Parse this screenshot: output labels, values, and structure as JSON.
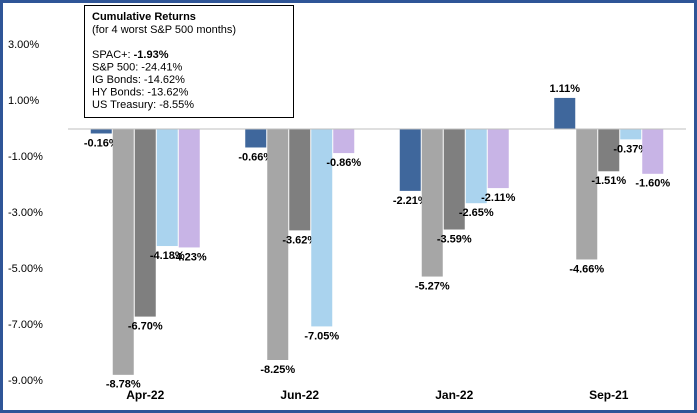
{
  "chart_data": {
    "type": "bar",
    "categories": [
      "Apr-22",
      "Jun-22",
      "Jan-22",
      "Sep-21"
    ],
    "series": [
      {
        "color": "#3f679c",
        "values": [
          -0.16,
          -0.66,
          -2.21,
          1.11
        ],
        "value_labels": [
          "-0.16%",
          "-0.66%",
          "-2.21%",
          "1.11%"
        ]
      },
      {
        "color": "#a6a6a6",
        "values": [
          -8.78,
          -8.25,
          -5.27,
          -4.66
        ],
        "value_labels": [
          "-8.78%",
          "-8.25%",
          "-5.27%",
          "-4.66%"
        ]
      },
      {
        "color": "#7f7f7f",
        "values": [
          -6.7,
          -3.62,
          -3.59,
          -1.51
        ],
        "value_labels": [
          "-6.70%",
          "-3.62%",
          "-3.59%",
          "-1.51%"
        ]
      },
      {
        "color": "#aad3ee",
        "values": [
          -4.18,
          -7.05,
          -2.65,
          -0.37
        ],
        "value_labels": [
          "-4.18%",
          "-7.05%",
          "-2.65%",
          "-0.37%"
        ]
      },
      {
        "color": "#c8b4e6",
        "values": [
          -4.23,
          -0.86,
          -2.11,
          -1.6
        ],
        "value_labels": [
          "-4.23%",
          "-0.86%",
          "-2.11%",
          "-1.60%"
        ]
      }
    ],
    "ylim": [
      -9,
      3
    ],
    "yticks": [
      {
        "value": 3,
        "label": "3.00%"
      },
      {
        "value": 1,
        "label": "1.00%"
      },
      {
        "value": -1,
        "label": "-1.00%"
      },
      {
        "value": -3,
        "label": "-3.00%"
      },
      {
        "value": -5,
        "label": "-5.00%"
      },
      {
        "value": -7,
        "label": "-7.00%"
      },
      {
        "value": -9,
        "label": "-9.00%"
      }
    ],
    "annotation": {
      "title": "Cumulative Returns",
      "subtitle": "(for 4 worst S&P 500 months)",
      "lines": [
        {
          "label": "SPAC+:",
          "value": "-1.93%"
        },
        {
          "label": "S&P 500:",
          "value": "-24.41%"
        },
        {
          "label": "IG Bonds:",
          "value": "-14.62%"
        },
        {
          "label": "HY Bonds:",
          "value": "-13.62%"
        },
        {
          "label": "US Treasury:",
          "value": "-8.55%"
        }
      ]
    }
  }
}
